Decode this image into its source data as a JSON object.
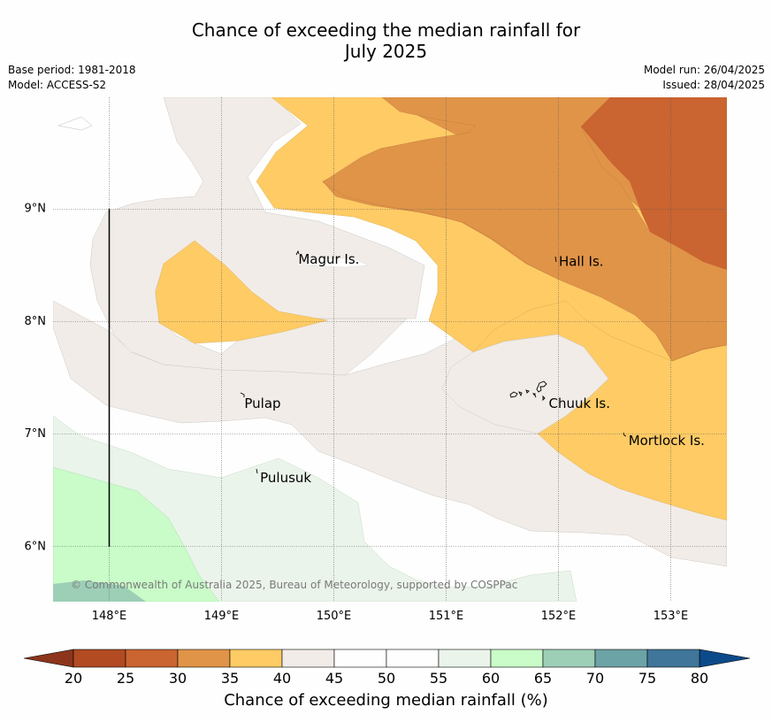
{
  "title_line1": "Chance of exceeding the median rainfall for",
  "title_line2": "July 2025",
  "meta_left": [
    "Base period: 1981-2018",
    "Model: ACCESS-S2"
  ],
  "meta_right": [
    "Model run: 26/04/2025",
    "Issued: 28/04/2025"
  ],
  "map": {
    "lon_range": [
      147.5,
      153.5
    ],
    "lat_range": [
      5.5,
      9.98
    ],
    "lon_ticks": [
      {
        "value": 148,
        "label": "148°E"
      },
      {
        "value": 149,
        "label": "149°E"
      },
      {
        "value": 150,
        "label": "150°E"
      },
      {
        "value": 151,
        "label": "151°E"
      },
      {
        "value": 152,
        "label": "152°E"
      },
      {
        "value": 153,
        "label": "153°E"
      }
    ],
    "lat_ticks": [
      {
        "value": 9,
        "label": "9°N"
      },
      {
        "value": 8,
        "label": "8°N"
      },
      {
        "value": 7,
        "label": "7°N"
      },
      {
        "value": 6,
        "label": "6°N"
      }
    ],
    "places": [
      {
        "name": "Magur Is.",
        "lon": 149.66,
        "lat": 8.55
      },
      {
        "name": "Hall Is.",
        "lon": 151.98,
        "lat": 8.53
      },
      {
        "name": "Pulap",
        "lon": 149.18,
        "lat": 7.27
      },
      {
        "name": "Chuuk Is.",
        "lon": 151.89,
        "lat": 7.27
      },
      {
        "name": "Mortlock Is.",
        "lon": 152.6,
        "lat": 6.94
      },
      {
        "name": "Pulusuk",
        "lon": 149.32,
        "lat": 6.61
      }
    ],
    "credit": "© Commonwealth of Australia 2025, Bureau of Meteorology, supported by COSPPac"
  },
  "colorbar": {
    "ticks": [
      "20",
      "25",
      "30",
      "35",
      "40",
      "45",
      "50",
      "55",
      "60",
      "65",
      "70",
      "75",
      "80"
    ],
    "colors": [
      "#b24a22",
      "#ca6431",
      "#e09448",
      "#fecb65",
      "#f1ece7",
      "#fdfefd",
      "#fdfefd",
      "#ebf4eb",
      "#c9fcc8",
      "#9dcfb7",
      "#6ca3a6",
      "#3f7699"
    ],
    "under_color": "#8c351c",
    "over_color": "#0d4a8a",
    "label": "Chance of exceeding median rainfall (%)"
  }
}
